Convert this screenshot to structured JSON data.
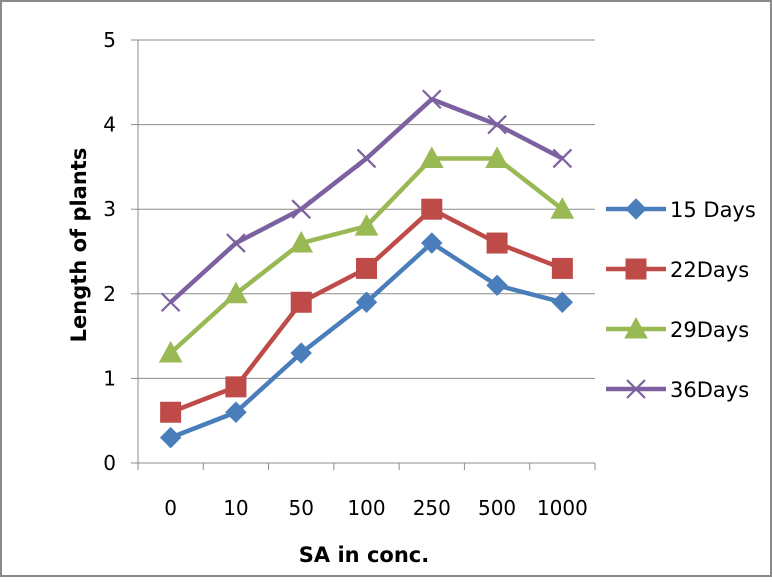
{
  "chart_data": {
    "type": "line",
    "title": "",
    "xlabel": "SA in conc.",
    "ylabel": "Length of plants",
    "categories": [
      "0",
      "10",
      "50",
      "100",
      "250",
      "500",
      "1000"
    ],
    "ylim": [
      0,
      5
    ],
    "yticks": [
      "0",
      "1",
      "2",
      "3",
      "4",
      "5"
    ],
    "grid": "horizontal",
    "legend_position": "right",
    "series": [
      {
        "name": "15 Days",
        "marker": "diamond",
        "color": "#4a7ebb",
        "values": [
          0.3,
          0.6,
          1.3,
          1.9,
          2.6,
          2.1,
          1.9
        ]
      },
      {
        "name": "22Days",
        "marker": "square",
        "color": "#be4b48",
        "values": [
          0.6,
          0.9,
          1.9,
          2.3,
          3.0,
          2.6,
          2.3
        ]
      },
      {
        "name": "29Days",
        "marker": "triangle",
        "color": "#98b954",
        "values": [
          1.3,
          2.0,
          2.6,
          2.8,
          3.6,
          3.6,
          3.0
        ]
      },
      {
        "name": "36Days",
        "marker": "x",
        "color": "#7d60a0",
        "values": [
          1.9,
          2.6,
          3.0,
          3.6,
          4.3,
          4.0,
          3.6
        ]
      }
    ]
  }
}
